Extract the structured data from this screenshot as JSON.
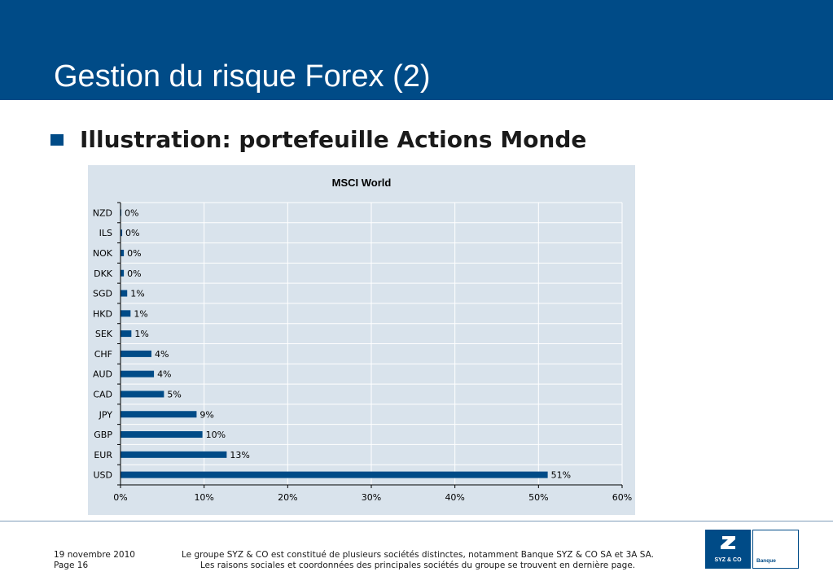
{
  "header": {
    "title": "Gestion du risque Forex (2)"
  },
  "subtitle": "Illustration: portefeuille Actions Monde",
  "chart_data": {
    "type": "bar",
    "orientation": "horizontal",
    "title": "MSCI World",
    "categories": [
      "NZD",
      "ILS",
      "NOK",
      "DKK",
      "SGD",
      "HKD",
      "SEK",
      "CHF",
      "AUD",
      "CAD",
      "JPY",
      "GBP",
      "EUR",
      "USD"
    ],
    "values": [
      0.1,
      0.2,
      0.4,
      0.4,
      0.8,
      1.2,
      1.3,
      3.7,
      4.0,
      5.2,
      9.1,
      9.8,
      12.7,
      51.1
    ],
    "value_labels": [
      "0%",
      "0%",
      "0%",
      "0%",
      "1%",
      "1%",
      "1%",
      "4%",
      "4%",
      "5%",
      "9%",
      "10%",
      "13%",
      "51%"
    ],
    "xlim": [
      0,
      60
    ],
    "xticks": [
      "0%",
      "10%",
      "20%",
      "30%",
      "40%",
      "50%",
      "60%"
    ],
    "xlabel": "",
    "ylabel": "",
    "grid": true,
    "legend": "none",
    "bar_color": "#004b87",
    "background_color": "#d9e3ec"
  },
  "footer": {
    "date": "19 novembre 2010",
    "page": "Page 16",
    "legal_line1": "Le groupe SYZ & CO est constitué de plusieurs sociétés distinctes, notamment Banque SYZ & CO SA et 3A SA.",
    "legal_line2": "Les raisons sociales et coordonnées des principales sociétés du groupe se trouvent en dernière page."
  },
  "logo": {
    "brand": "SYZ & CO",
    "sub": "Banque",
    "color": "#004b87"
  }
}
